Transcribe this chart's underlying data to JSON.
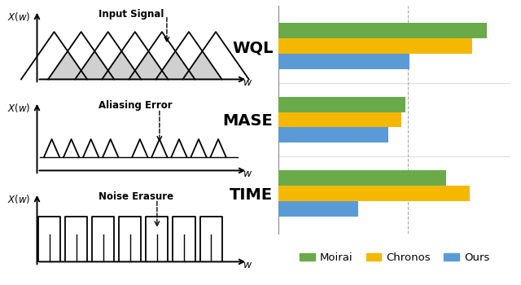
{
  "bar_categories": [
    "WQL",
    "MASE",
    "TIME"
  ],
  "bar_values": {
    "Moirai": [
      0.97,
      0.59,
      0.78
    ],
    "Chronos": [
      0.9,
      0.57,
      0.89
    ],
    "Ours": [
      0.61,
      0.51,
      0.37
    ]
  },
  "bar_colors": {
    "Moirai": "#6aaa4b",
    "Chronos": "#f5b800",
    "Ours": "#5b9bd5"
  },
  "xlim": [
    0,
    1.08
  ],
  "background": "#ffffff",
  "legend_labels": [
    "Moirai",
    "Chronos",
    "Ours"
  ]
}
